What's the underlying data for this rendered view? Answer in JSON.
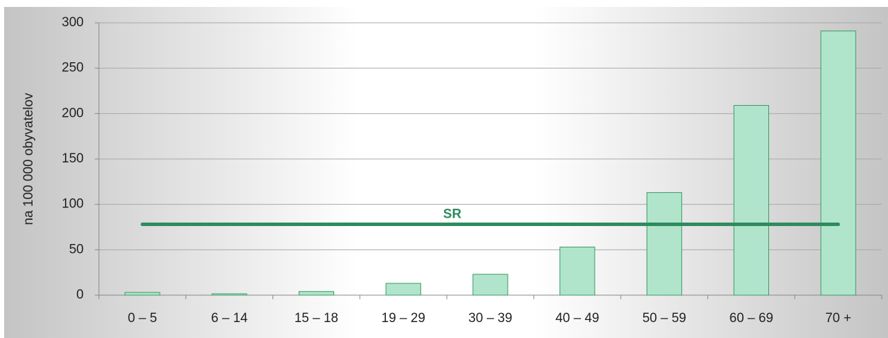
{
  "chart_data": {
    "type": "bar",
    "y_label": "na 100 000 obyvatelov",
    "categories": [
      "0 – 5",
      "6 – 14",
      "15 – 18",
      "19 – 29",
      "30 – 39",
      "40 – 49",
      "50 – 59",
      "60 – 69",
      "70 +"
    ],
    "values": [
      3,
      1.5,
      4,
      13,
      23,
      53,
      113,
      209,
      291
    ],
    "color": "#b0e5cc",
    "edge_color": "#3a9a63",
    "ylim": [
      0,
      300
    ],
    "yticks": [
      0,
      50,
      100,
      150,
      200,
      250,
      300
    ],
    "grid": true,
    "reference_line": {
      "label": "SR",
      "value": 78,
      "color": "#2e8b5e"
    }
  }
}
